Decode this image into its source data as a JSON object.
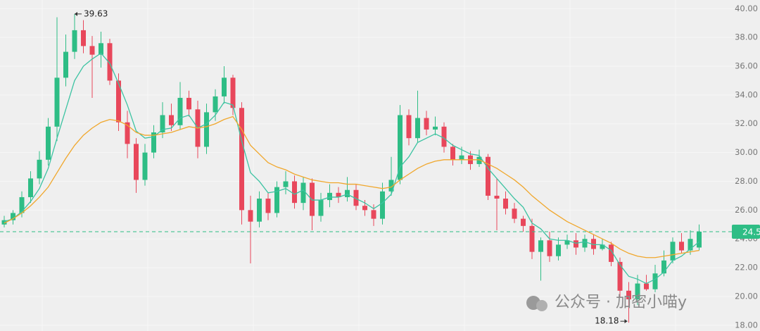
{
  "chart_data": {
    "type": "candlestick",
    "open": [
      25.0,
      25.3,
      25.8,
      26.9,
      28.2,
      29.5,
      31.8,
      35.2,
      37.0,
      38.5,
      37.4,
      36.8,
      37.6,
      35.0,
      32.1,
      30.6,
      28.1,
      30.0,
      31.4,
      32.6,
      31.9,
      33.8,
      33.0,
      30.4,
      32.8,
      33.9,
      35.2,
      33.1,
      26.0,
      25.2,
      26.8,
      25.8,
      27.6,
      28.0,
      26.5,
      27.9,
      25.6,
      26.7,
      27.2,
      26.9,
      27.4,
      26.3,
      26.0,
      25.4,
      27.3,
      28.1,
      32.6,
      31.0,
      32.4,
      31.6,
      31.8,
      30.4,
      29.5,
      29.8,
      29.2,
      29.7,
      27.0,
      26.8,
      26.1,
      25.4,
      24.9,
      23.1,
      23.9,
      22.8,
      23.6,
      23.9,
      23.4,
      24.0,
      23.3,
      23.6,
      22.4,
      20.4,
      19.8,
      20.9,
      20.5,
      21.6,
      22.5,
      23.8,
      23.2,
      23.4
    ],
    "high": [
      25.6,
      26.0,
      27.3,
      28.7,
      30.1,
      32.4,
      39.4,
      38.2,
      39.63,
      39.2,
      38.1,
      38.4,
      37.9,
      35.5,
      32.9,
      31.0,
      30.6,
      31.9,
      33.5,
      33.4,
      34.9,
      34.3,
      33.6,
      33.4,
      34.4,
      36.0,
      35.4,
      33.5,
      27.0,
      27.3,
      27.2,
      28.0,
      28.7,
      28.4,
      28.3,
      28.2,
      27.2,
      27.8,
      27.6,
      28.3,
      27.8,
      26.7,
      26.4,
      27.9,
      29.7,
      33.3,
      33.0,
      34.3,
      32.9,
      32.5,
      32.1,
      30.6,
      30.4,
      30.1,
      30.2,
      29.9,
      28.2,
      27.3,
      26.5,
      25.6,
      25.4,
      24.1,
      24.5,
      24.1,
      24.3,
      24.4,
      24.3,
      24.3,
      24.0,
      23.8,
      22.7,
      21.0,
      21.5,
      21.5,
      22.2,
      23.2,
      24.1,
      24.4,
      24.6,
      25.0
    ],
    "low": [
      24.8,
      25.0,
      25.5,
      26.5,
      27.8,
      29.1,
      30.8,
      34.6,
      36.5,
      36.9,
      33.8,
      35.9,
      34.7,
      31.5,
      29.6,
      27.2,
      27.7,
      29.6,
      31.0,
      31.5,
      31.6,
      32.5,
      29.6,
      29.9,
      32.2,
      33.4,
      32.6,
      25.0,
      22.3,
      24.8,
      25.3,
      25.5,
      27.1,
      26.1,
      26.0,
      24.6,
      25.2,
      26.2,
      26.5,
      26.6,
      26.0,
      25.6,
      24.9,
      25.0,
      27.0,
      27.8,
      30.5,
      30.7,
      31.2,
      31.2,
      30.0,
      29.1,
      29.2,
      28.8,
      29.0,
      26.7,
      24.6,
      25.7,
      25.1,
      24.5,
      22.6,
      21.1,
      22.4,
      22.5,
      23.3,
      22.9,
      23.1,
      22.9,
      23.2,
      22.1,
      19.9,
      18.18,
      19.4,
      20.4,
      20.3,
      21.4,
      22.3,
      23.0,
      22.9,
      23.2
    ],
    "close": [
      25.3,
      25.8,
      26.9,
      28.2,
      29.5,
      31.8,
      35.2,
      37.0,
      38.5,
      37.4,
      36.8,
      37.6,
      35.0,
      32.1,
      30.6,
      28.1,
      30.0,
      31.4,
      32.6,
      31.9,
      33.8,
      33.0,
      30.4,
      32.8,
      33.9,
      35.2,
      33.1,
      26.0,
      25.2,
      26.8,
      25.8,
      27.6,
      28.0,
      26.5,
      27.9,
      25.6,
      26.7,
      27.2,
      26.9,
      27.4,
      26.3,
      26.0,
      25.4,
      27.3,
      28.1,
      32.6,
      31.0,
      32.4,
      31.6,
      31.8,
      30.4,
      29.5,
      29.8,
      29.2,
      29.7,
      27.0,
      26.8,
      26.1,
      25.4,
      24.9,
      23.1,
      23.9,
      22.8,
      23.6,
      23.9,
      23.4,
      24.0,
      23.3,
      23.6,
      22.4,
      20.4,
      19.8,
      20.9,
      20.5,
      21.6,
      22.5,
      23.8,
      23.2,
      24.0,
      24.5
    ],
    "up_color": "#2ebd85",
    "down_color": "#e8475b",
    "series": [
      {
        "color": "#3cc3a2",
        "values": [
          25.2,
          25.4,
          25.9,
          26.6,
          27.5,
          28.9,
          31.0,
          33.0,
          35.0,
          36.0,
          36.5,
          36.9,
          36.2,
          34.8,
          33.3,
          31.5,
          31.0,
          31.1,
          31.6,
          31.7,
          32.4,
          32.6,
          31.7,
          32.0,
          32.6,
          33.5,
          33.3,
          30.8,
          28.6,
          28.0,
          27.2,
          27.3,
          27.5,
          27.1,
          27.4,
          26.7,
          26.7,
          26.9,
          26.9,
          27.1,
          26.8,
          26.5,
          26.1,
          26.5,
          27.1,
          29.0,
          29.7,
          30.7,
          31.0,
          31.3,
          31.0,
          30.5,
          30.2,
          29.9,
          29.8,
          28.9,
          28.2,
          27.5,
          26.8,
          26.2,
          25.1,
          24.7,
          24.0,
          23.9,
          23.9,
          23.7,
          23.8,
          23.6,
          23.6,
          23.2,
          22.2,
          21.4,
          21.2,
          20.9,
          21.2,
          21.7,
          22.5,
          22.8,
          23.3,
          23.8
        ]
      },
      {
        "color": "#f0a72c",
        "values": [
          25.1,
          25.4,
          25.8,
          26.3,
          26.9,
          27.6,
          28.6,
          29.6,
          30.5,
          31.2,
          31.7,
          32.1,
          32.3,
          32.2,
          31.9,
          31.4,
          31.2,
          31.2,
          31.3,
          31.4,
          31.6,
          31.8,
          31.7,
          31.8,
          32.0,
          32.3,
          32.5,
          31.6,
          30.5,
          29.9,
          29.3,
          29.0,
          28.8,
          28.5,
          28.3,
          28.1,
          28.0,
          27.9,
          27.9,
          27.8,
          27.8,
          27.7,
          27.6,
          27.5,
          27.6,
          28.1,
          28.5,
          28.9,
          29.2,
          29.4,
          29.5,
          29.5,
          29.5,
          29.5,
          29.5,
          29.2,
          28.9,
          28.5,
          28.1,
          27.6,
          27.0,
          26.5,
          26.0,
          25.6,
          25.2,
          24.9,
          24.6,
          24.3,
          24.0,
          23.7,
          23.3,
          23.0,
          22.8,
          22.7,
          22.7,
          22.8,
          22.9,
          23.0,
          23.1,
          23.2
        ]
      }
    ],
    "ylim": [
      17.6,
      40.6
    ],
    "yticks": [
      {
        "value": 18,
        "label": "18.00"
      },
      {
        "value": 20,
        "label": "20.00"
      },
      {
        "value": 22,
        "label": "22.00"
      },
      {
        "value": 24,
        "label": "24.00"
      },
      {
        "value": 26,
        "label": "26.00"
      },
      {
        "value": 28,
        "label": "28.00"
      },
      {
        "value": 30,
        "label": "30.00"
      },
      {
        "value": 32,
        "label": "32.00"
      },
      {
        "value": 34,
        "label": "34.00"
      },
      {
        "value": 36,
        "label": "36.00"
      },
      {
        "value": 38,
        "label": "38.00"
      },
      {
        "value": 40,
        "label": "40.00"
      }
    ],
    "grid": true,
    "last_price": 24.5,
    "max_label": 39.63,
    "min_label": 18.18,
    "watermark": "公众号 · 加密小喵y"
  }
}
